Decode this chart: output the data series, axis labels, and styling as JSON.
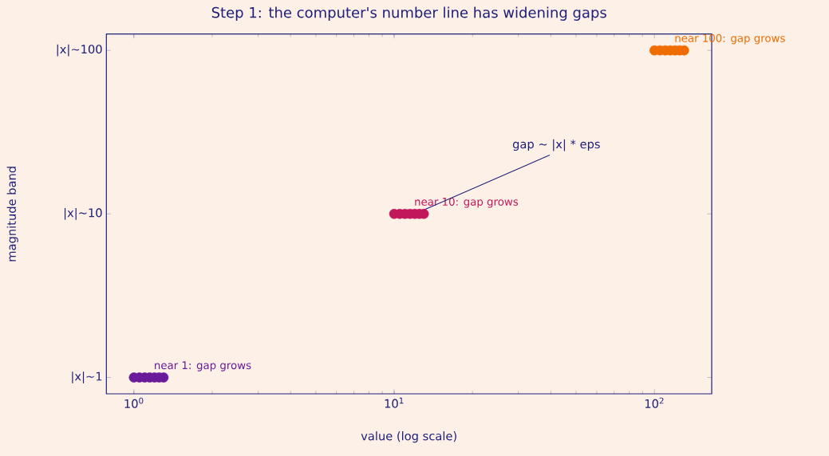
{
  "chart_data": {
    "type": "scatter",
    "orientation": "horizontal",
    "title": "Step 1: the computer's number line has widening gaps",
    "xlabel": "value (log scale)",
    "ylabel": "magnitude band",
    "log": "x",
    "grid": false,
    "xlim": [
      0.784,
      166
    ],
    "xticks": [
      {
        "value": 1,
        "label": "10$^{0}$"
      },
      {
        "value": 10,
        "label": "10$^{1}$"
      },
      {
        "value": 100,
        "label": "10$^{2}$"
      }
    ],
    "categories": [
      "|x|~100",
      "|x|~10",
      "|x|~1"
    ],
    "series": [
      {
        "name": "near 1: gap grows",
        "color": "#6a1b9a",
        "x": [
          "|x|~1",
          "|x|~1",
          "|x|~1",
          "|x|~1",
          "|x|~1",
          "|x|~1",
          "|x|~1"
        ],
        "values": [
          1,
          1.05,
          1.1,
          1.15,
          1.2,
          1.25,
          1.3
        ]
      },
      {
        "name": "near 10: gap grows",
        "color": "#c2185b",
        "x": [
          "|x|~10",
          "|x|~10",
          "|x|~10",
          "|x|~10",
          "|x|~10",
          "|x|~10",
          "|x|~10"
        ],
        "values": [
          10,
          10.5,
          11,
          11.5,
          12,
          12.5,
          13
        ]
      },
      {
        "name": "near 100: gap grows",
        "color": "#ef6c00",
        "x": [
          "|x|~100",
          "|x|~100",
          "|x|~100",
          "|x|~100",
          "|x|~100",
          "|x|~100",
          "|x|~100"
        ],
        "values": [
          100,
          105,
          110,
          115,
          120,
          125,
          130
        ]
      }
    ],
    "annotations": [
      {
        "text": "gap ~ |x| * eps",
        "x": 12,
        "y": "|x|~10"
      }
    ]
  }
}
